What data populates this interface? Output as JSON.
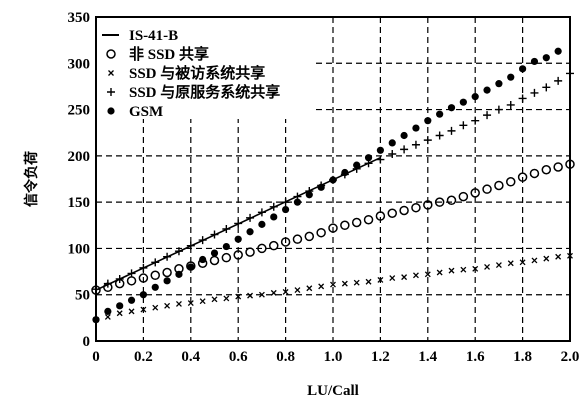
{
  "chart_data": {
    "type": "scatter",
    "xlabel": "LU/Call",
    "ylabel": "信令负荷",
    "xlim": [
      0,
      2.0
    ],
    "ylim": [
      0,
      350
    ],
    "xticks": [
      "0",
      "0.2",
      "0.4",
      "0.6",
      "0.8",
      "1.0",
      "1.2",
      "1.4",
      "1.6",
      "1.8",
      "2.0"
    ],
    "yticks": [
      "0",
      "50",
      "100",
      "150",
      "200",
      "250",
      "300",
      "350"
    ],
    "grid": "dashed",
    "legend_position": "top-left",
    "series": [
      {
        "name": "IS-41-B",
        "marker": "line",
        "x": [
          0.0,
          1.2
        ],
        "y": [
          55,
          198
        ]
      },
      {
        "name": "非 SSD 共享",
        "marker": "open-circle",
        "x": [
          0.0,
          0.05,
          0.1,
          0.15,
          0.2,
          0.25,
          0.3,
          0.35,
          0.4,
          0.45,
          0.5,
          0.55,
          0.6,
          0.65,
          0.7,
          0.75,
          0.8,
          0.85,
          0.9,
          0.95,
          1.0,
          1.05,
          1.1,
          1.15,
          1.2,
          1.25,
          1.3,
          1.35,
          1.4,
          1.45,
          1.5,
          1.55,
          1.6,
          1.65,
          1.7,
          1.75,
          1.8,
          1.85,
          1.9,
          1.95,
          2.0
        ],
        "y": [
          55,
          58,
          62,
          65,
          68,
          71,
          74,
          78,
          81,
          84,
          87,
          90,
          93,
          96,
          100,
          103,
          107,
          110,
          113,
          117,
          122,
          125,
          128,
          131,
          135,
          138,
          141,
          144,
          147,
          150,
          152,
          156,
          160,
          164,
          168,
          172,
          177,
          181,
          185,
          188,
          191
        ]
      },
      {
        "name": "SSD 与被访系统共享",
        "marker": "x",
        "x": [
          0.0,
          0.05,
          0.1,
          0.15,
          0.2,
          0.25,
          0.3,
          0.35,
          0.4,
          0.45,
          0.5,
          0.55,
          0.6,
          0.65,
          0.7,
          0.75,
          0.8,
          0.85,
          0.9,
          0.95,
          1.0,
          1.05,
          1.1,
          1.15,
          1.2,
          1.25,
          1.3,
          1.35,
          1.4,
          1.45,
          1.5,
          1.55,
          1.6,
          1.65,
          1.7,
          1.75,
          1.8,
          1.85,
          1.9,
          1.95,
          2.0
        ],
        "y": [
          23,
          26,
          30,
          32,
          34,
          36,
          38,
          40,
          41,
          43,
          45,
          46,
          48,
          49,
          50,
          52,
          53,
          55,
          57,
          59,
          61,
          62,
          63,
          64,
          66,
          68,
          69,
          71,
          72,
          74,
          76,
          77,
          78,
          80,
          82,
          84,
          85,
          87,
          89,
          91,
          92
        ]
      },
      {
        "name": "SSD 与原服务系统共享",
        "marker": "plus",
        "x": [
          0.0,
          0.05,
          0.1,
          0.15,
          0.2,
          0.25,
          0.3,
          0.35,
          0.4,
          0.45,
          0.5,
          0.55,
          0.6,
          0.65,
          0.7,
          0.75,
          0.8,
          0.85,
          0.9,
          0.95,
          1.0,
          1.05,
          1.1,
          1.15,
          1.2,
          1.25,
          1.3,
          1.35,
          1.4,
          1.45,
          1.5,
          1.55,
          1.6,
          1.65,
          1.7,
          1.75,
          1.8,
          1.85,
          1.9,
          1.95,
          2.0
        ],
        "y": [
          56,
          62,
          67,
          73,
          79,
          85,
          91,
          97,
          103,
          109,
          115,
          121,
          127,
          133,
          139,
          145,
          150,
          156,
          162,
          168,
          174,
          180,
          186,
          192,
          196,
          202,
          207,
          212,
          217,
          222,
          227,
          233,
          238,
          244,
          250,
          255,
          262,
          268,
          274,
          281,
          289
        ]
      },
      {
        "name": "GSM",
        "marker": "filled-circle",
        "x": [
          0.0,
          0.05,
          0.1,
          0.15,
          0.2,
          0.25,
          0.3,
          0.35,
          0.4,
          0.45,
          0.5,
          0.55,
          0.6,
          0.65,
          0.7,
          0.75,
          0.8,
          0.85,
          0.9,
          0.95,
          1.0,
          1.05,
          1.1,
          1.15,
          1.2,
          1.25,
          1.3,
          1.35,
          1.4,
          1.45,
          1.5,
          1.55,
          1.6,
          1.65,
          1.7,
          1.75,
          1.8,
          1.85,
          1.9,
          1.95
        ],
        "y": [
          23,
          32,
          38,
          44,
          50,
          58,
          65,
          72,
          80,
          88,
          95,
          102,
          110,
          118,
          126,
          134,
          142,
          150,
          158,
          166,
          174,
          182,
          190,
          198,
          206,
          214,
          222,
          230,
          238,
          245,
          252,
          258,
          264,
          271,
          278,
          285,
          294,
          302,
          306,
          313
        ]
      }
    ]
  }
}
